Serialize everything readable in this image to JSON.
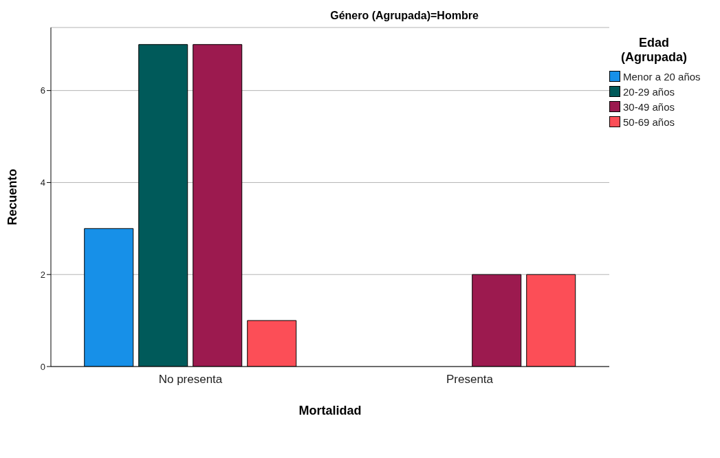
{
  "chart_data": {
    "type": "bar",
    "title": "Género (Agrupada)=Hombre",
    "xlabel": "Mortalidad",
    "ylabel": "Recuento",
    "legend_title": "Edad (Agrupada)",
    "categories": [
      "No presenta",
      "Presenta"
    ],
    "series": [
      {
        "name": "Menor a 20 años",
        "color": "#1790e8",
        "values": [
          3,
          0
        ]
      },
      {
        "name": "20-29 años",
        "color": "#005a5a",
        "values": [
          7,
          0
        ]
      },
      {
        "name": "30-49 años",
        "color": "#9c1a4f",
        "values": [
          7,
          2
        ]
      },
      {
        "name": "50-69 años",
        "color": "#fc4e57",
        "values": [
          1,
          2
        ]
      }
    ],
    "ylim": [
      0,
      7.37
    ],
    "yticks": [
      0,
      2,
      4,
      6
    ],
    "grid": "y",
    "legend": "top right"
  }
}
